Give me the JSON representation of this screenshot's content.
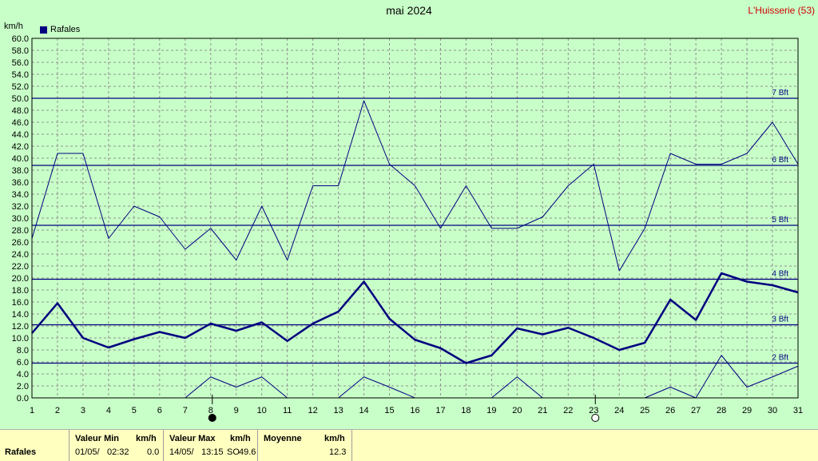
{
  "header": {
    "title": "mai 2024",
    "station": "L'Huisserie (53)",
    "unit": "km/h",
    "legend_label": "Rafales"
  },
  "chart_data": {
    "type": "line",
    "title": "mai 2024",
    "ylabel": "km/h",
    "xlim": [
      1,
      31
    ],
    "ylim": [
      0,
      60
    ],
    "y_tick_step": 2,
    "x_ticks": [
      1,
      2,
      3,
      4,
      5,
      6,
      7,
      8,
      9,
      10,
      11,
      12,
      13,
      14,
      15,
      16,
      17,
      18,
      19,
      20,
      21,
      22,
      23,
      24,
      25,
      26,
      27,
      28,
      29,
      30,
      31
    ],
    "grid": true,
    "legend_position": "top-left",
    "series": [
      {
        "name": "Rafales",
        "role": "mean",
        "color": "#000080",
        "x": [
          1,
          2,
          3,
          4,
          5,
          6,
          7,
          8,
          9,
          10,
          11,
          12,
          13,
          14,
          15,
          16,
          17,
          18,
          19,
          20,
          21,
          22,
          23,
          24,
          25,
          26,
          27,
          28,
          29,
          30,
          31
        ],
        "y": [
          10.8,
          15.8,
          10.0,
          8.4,
          9.8,
          11.0,
          10.0,
          12.4,
          11.2,
          12.6,
          9.5,
          12.4,
          14.4,
          19.4,
          13.2,
          9.7,
          8.3,
          5.8,
          7.1,
          11.6,
          10.6,
          11.7,
          10.0,
          8.0,
          9.2,
          16.4,
          13.0,
          20.8,
          19.4,
          18.8,
          17.6
        ]
      },
      {
        "role": "max",
        "color": "#000080",
        "x": [
          1,
          2,
          3,
          4,
          5,
          6,
          7,
          8,
          9,
          10,
          11,
          12,
          13,
          14,
          15,
          16,
          17,
          18,
          19,
          20,
          21,
          22,
          23,
          24,
          25,
          26,
          27,
          28,
          29,
          30,
          31
        ],
        "y": [
          26.6,
          40.8,
          40.8,
          26.6,
          32.0,
          30.2,
          24.8,
          28.3,
          23.0,
          32.0,
          23.0,
          35.4,
          35.4,
          49.6,
          39.0,
          35.4,
          28.3,
          35.4,
          28.3,
          28.3,
          30.2,
          35.4,
          39.0,
          21.2,
          28.3,
          40.8,
          39.0,
          39.0,
          40.8,
          46.0,
          39.0
        ]
      },
      {
        "role": "min",
        "color": "#000080",
        "x": [
          7,
          8,
          9,
          10,
          11,
          13,
          14,
          15,
          16,
          19,
          20,
          21,
          25,
          26,
          27,
          28,
          29,
          30,
          31
        ],
        "y": [
          0,
          3.5,
          1.8,
          3.5,
          0,
          0,
          3.5,
          1.8,
          0,
          0,
          3.5,
          0,
          0,
          1.8,
          0,
          7.1,
          1.8,
          3.5,
          5.3
        ]
      }
    ],
    "reference_lines": [
      {
        "label": "2 Bft",
        "y": 5.8
      },
      {
        "label": "3 Bft",
        "y": 12.2
      },
      {
        "label": "4 Bft",
        "y": 19.8
      },
      {
        "label": "5 Bft",
        "y": 28.8
      },
      {
        "label": "6 Bft",
        "y": 38.8
      },
      {
        "label": "7 Bft",
        "y": 50.0
      }
    ],
    "moon_phases": [
      {
        "day": 8,
        "phase": "new"
      },
      {
        "day": 23,
        "phase": "full"
      }
    ]
  },
  "stats": {
    "row_label": "Rafales",
    "min": {
      "header": "Valeur Min",
      "unit": "km/h",
      "date": "01/05/",
      "time": "02:32",
      "value": "0.0"
    },
    "max": {
      "header": "Valeur Max",
      "unit": "km/h",
      "date": "14/05/",
      "time": "13:15",
      "dir": "SO",
      "value": "49.6"
    },
    "mean": {
      "header": "Moyenne",
      "unit": "km/h",
      "value": "12.3"
    }
  },
  "colors": {
    "background": "#c8ffc8",
    "series": "#000080",
    "grid": "#909090",
    "station": "#d00000",
    "stats_background": "#ffffc0"
  }
}
